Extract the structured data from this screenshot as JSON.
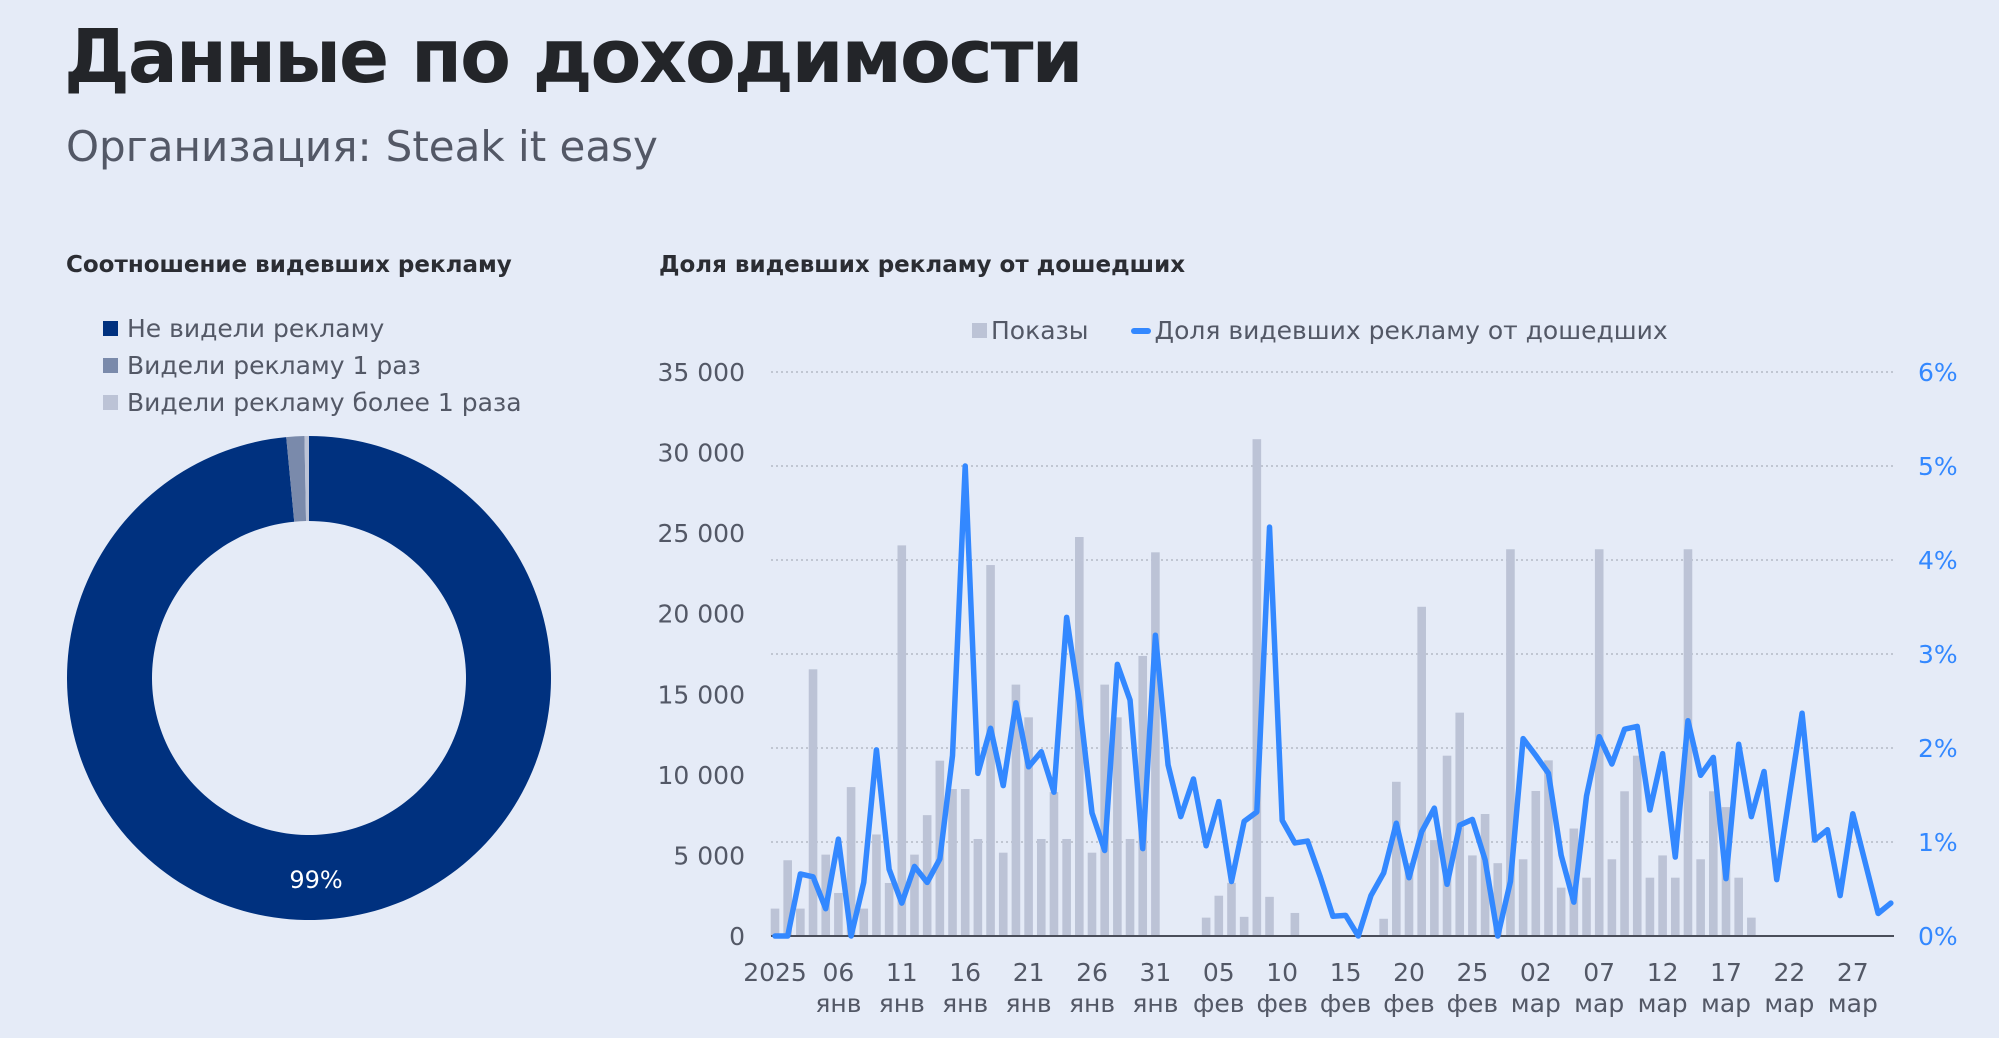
{
  "header": {
    "title": "Данные по доходимости",
    "org_label": "Организация:",
    "org_name": "Steak it easy"
  },
  "chart_data": [
    {
      "type": "pie",
      "donut": true,
      "title": "Соотношение видевших рекламу",
      "legend_position": "top-left",
      "slices": [
        {
          "name": "Не видели рекламу",
          "value": 98.5,
          "color": "#00317f"
        },
        {
          "name": "Видели рекламу 1 раз",
          "value": 1.2,
          "color": "#7a8aab"
        },
        {
          "name": "Видели рекламу более 1 раза",
          "value": 0.3,
          "color": "#bcc3d6"
        }
      ],
      "data_labels": [
        "99%"
      ]
    },
    {
      "type": "bar+line",
      "title": "Доля видевших рекламу от дошедших",
      "legend_position": "top",
      "grid": true,
      "x_start": "2025-01-01",
      "x_tick_labels": [
        [
          "2025",
          ""
        ],
        [
          "06",
          "янв"
        ],
        [
          "11",
          "янв"
        ],
        [
          "16",
          "янв"
        ],
        [
          "21",
          "янв"
        ],
        [
          "26",
          "янв"
        ],
        [
          "31",
          "янв"
        ],
        [
          "05",
          "фев"
        ],
        [
          "10",
          "фев"
        ],
        [
          "15",
          "фев"
        ],
        [
          "20",
          "фев"
        ],
        [
          "25",
          "фев"
        ],
        [
          "02",
          "мар"
        ],
        [
          "07",
          "мар"
        ],
        [
          "12",
          "мар"
        ],
        [
          "17",
          "мар"
        ],
        [
          "22",
          "мар"
        ],
        [
          "27",
          "мар"
        ]
      ],
      "y_left": {
        "range": [
          0,
          35000
        ],
        "ticks": [
          "0",
          "5 000",
          "10 000",
          "15 000",
          "20 000",
          "25 000",
          "30 000",
          "35 000"
        ]
      },
      "y_right": {
        "range": [
          0,
          6
        ],
        "ticks": [
          "0%",
          "1%",
          "2%",
          "3%",
          "4%",
          "5%",
          "6%"
        ],
        "color": "#3388ff"
      },
      "series": [
        {
          "name": "Показы",
          "kind": "bar",
          "axis": "left",
          "color": "#bcc3d6",
          "values": [
            1700,
            4700,
            1700,
            16550,
            5050,
            2670,
            9240,
            1700,
            6300,
            3290,
            24240,
            5050,
            7500,
            10880,
            9120,
            9120,
            6020,
            23020,
            5170,
            15600,
            13570,
            6020,
            8930,
            6020,
            24760,
            5170,
            15600,
            13570,
            6020,
            17380,
            23810,
            0,
            0,
            0,
            1140,
            2500,
            3300,
            1190,
            30830,
            2430,
            0,
            1430,
            0,
            0,
            0,
            0,
            0,
            0,
            1070,
            9570,
            4520,
            20430,
            5950,
            11190,
            13860,
            5000,
            7570,
            4520,
            24000,
            4760,
            9000,
            10900,
            3000,
            6670,
            3620,
            24000,
            4760,
            8980,
            11190,
            3620,
            5000,
            3620,
            24000,
            4760,
            8980,
            8000,
            3620,
            1140,
            0,
            0,
            0,
            0,
            0,
            0,
            0,
            0,
            0,
            0,
            0
          ]
        },
        {
          "name": "Доля видевших рекламу от дошедших",
          "kind": "line",
          "axis": "right",
          "color": "#3388ff",
          "values": [
            0,
            0,
            0.66,
            0.63,
            0.29,
            1.03,
            0,
            0.57,
            1.98,
            0.71,
            0.35,
            0.74,
            0.57,
            0.82,
            1.92,
            5.0,
            1.73,
            2.21,
            1.6,
            2.48,
            1.8,
            1.96,
            1.53,
            3.39,
            2.49,
            1.31,
            0.91,
            2.89,
            2.51,
            0.93,
            3.2,
            1.82,
            1.27,
            1.67,
            0.96,
            1.43,
            0.58,
            1.22,
            1.32,
            4.35,
            1.23,
            0.99,
            1.01,
            0.63,
            0.21,
            0.22,
            0,
            0.43,
            0.67,
            1.2,
            0.62,
            1.11,
            1.36,
            0.55,
            1.18,
            1.24,
            0.81,
            0,
            0.58,
            2.1,
            1.92,
            1.73,
            0.86,
            0.36,
            1.49,
            2.12,
            1.83,
            2.2,
            2.23,
            1.34,
            1.94,
            0.84,
            2.29,
            1.71,
            1.9,
            0.61,
            2.04,
            1.27,
            1.75,
            0.6,
            1.49,
            2.37,
            1.02,
            1.13,
            0.43,
            1.3,
            0.77,
            0.24,
            0.35
          ]
        }
      ]
    }
  ]
}
